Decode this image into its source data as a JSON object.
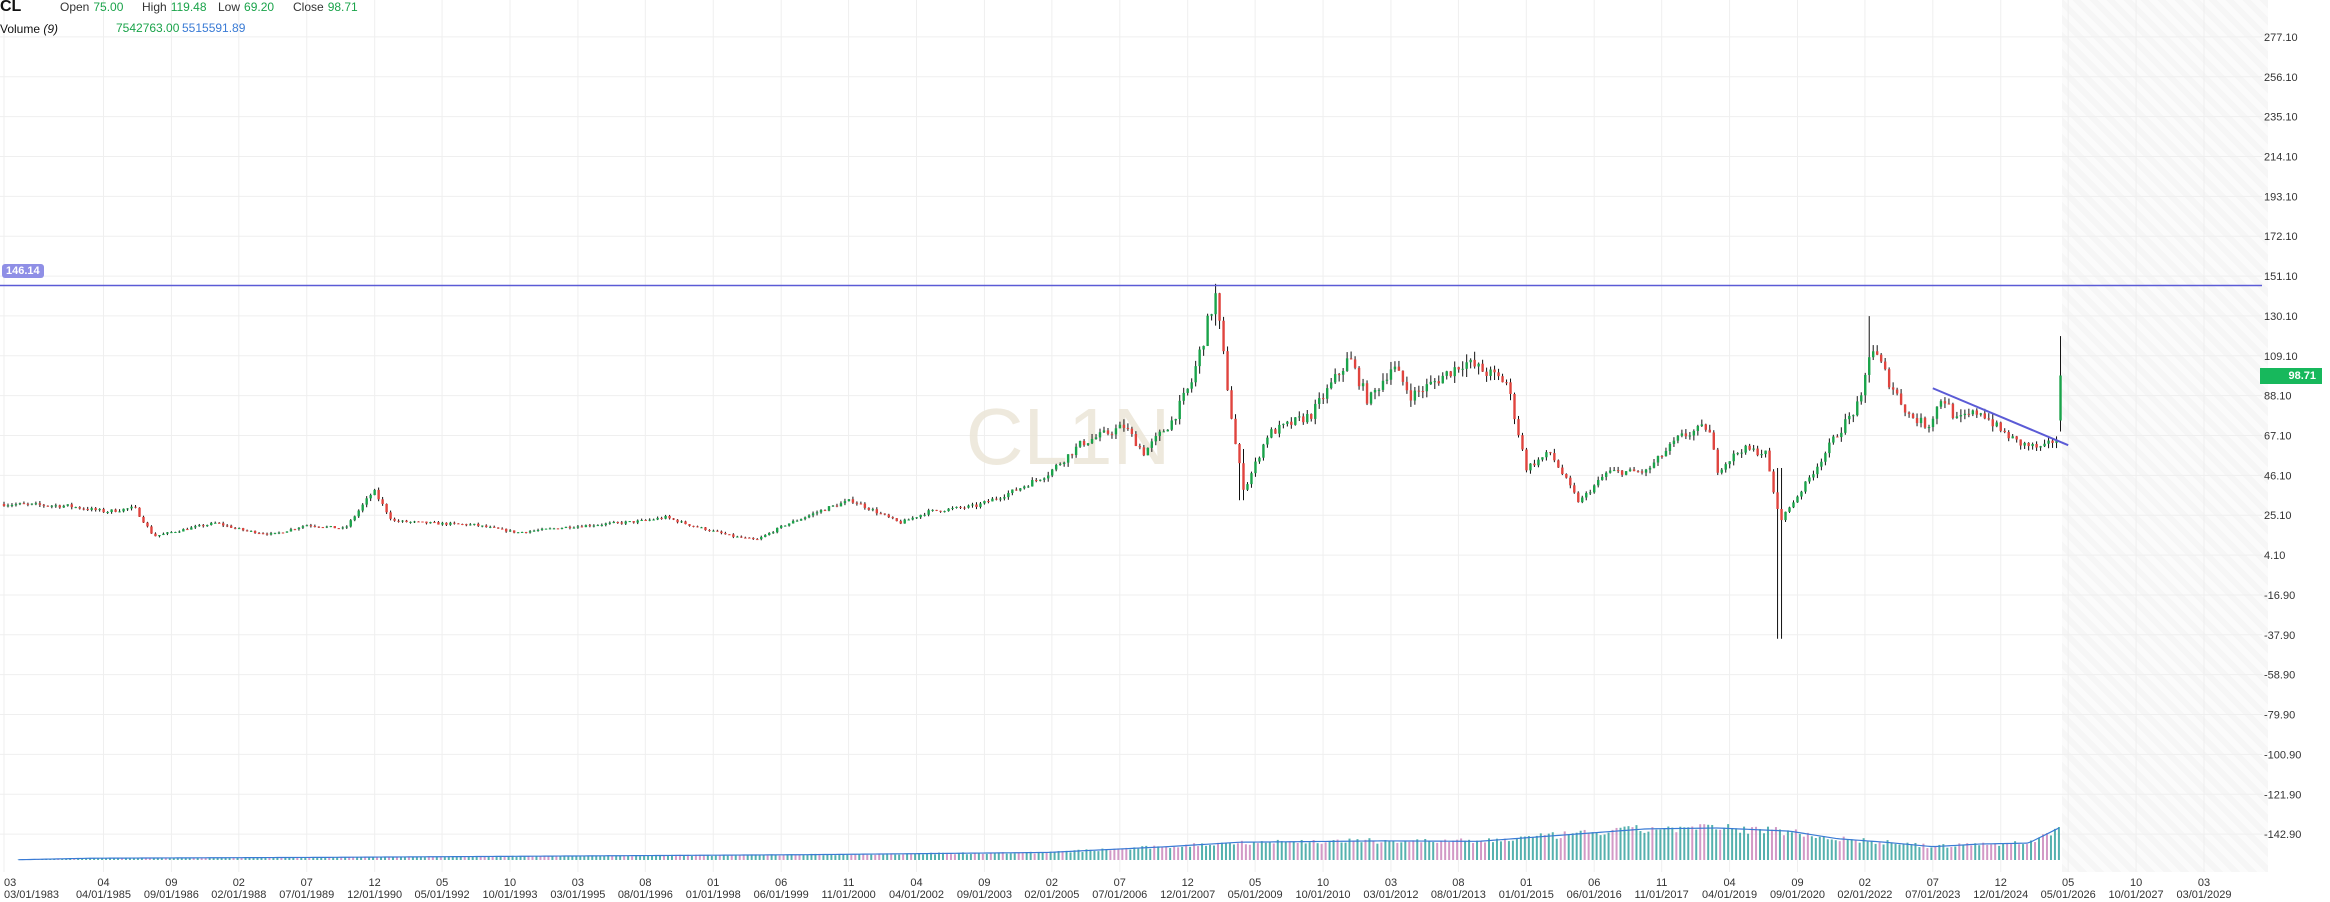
{
  "legend": {
    "symbol": "CL",
    "open_label": "Open",
    "open_value": "75.00",
    "high_label": "High",
    "high_value": "119.48",
    "low_label": "Low",
    "low_value": "69.20",
    "close_label": "Close",
    "close_value": "98.71",
    "volume_label": "Volume",
    "volume_param": "(9)",
    "volume_value": "7542763.00",
    "volume_ma_value": "5515591.89"
  },
  "watermark": "CL1N",
  "horizontal_line": {
    "label": "146.14",
    "value": 146.14,
    "color": "#5b5bd6"
  },
  "last_price_badge": "98.71",
  "colors": {
    "up": "#1aa34a",
    "down": "#e0443e",
    "volume_up": "#2a9d9a",
    "volume_down": "#c77fb8",
    "volume_ma": "#3a7bd5",
    "trendline": "#5b5bd6",
    "grid": "#efefef"
  },
  "chart_data": {
    "type": "candlestick",
    "ylim": [
      -160,
      292
    ],
    "y_ticks": [
      "277.10",
      "256.10",
      "235.10",
      "214.10",
      "193.10",
      "172.10",
      "151.10",
      "130.10",
      "109.10",
      "88.10",
      "67.10",
      "46.10",
      "25.10",
      "4.10",
      "-16.90",
      "-37.90",
      "-58.90",
      "-79.90",
      "-100.90",
      "-121.90",
      "-142.90"
    ],
    "x_ticks": [
      {
        "top": "03",
        "bottom": "03/01/1983",
        "year": 1983.17
      },
      {
        "top": "04",
        "bottom": "04/01/1985",
        "year": 1985.25
      },
      {
        "top": "09",
        "bottom": "09/01/1986",
        "year": 1986.67
      },
      {
        "top": "02",
        "bottom": "02/01/1988",
        "year": 1988.08
      },
      {
        "top": "07",
        "bottom": "07/01/1989",
        "year": 1989.5
      },
      {
        "top": "12",
        "bottom": "12/01/1990",
        "year": 1990.92
      },
      {
        "top": "05",
        "bottom": "05/01/1992",
        "year": 1992.33
      },
      {
        "top": "10",
        "bottom": "10/01/1993",
        "year": 1993.75
      },
      {
        "top": "03",
        "bottom": "03/01/1995",
        "year": 1995.17
      },
      {
        "top": "08",
        "bottom": "08/01/1996",
        "year": 1996.58
      },
      {
        "top": "01",
        "bottom": "01/01/1998",
        "year": 1998.0
      },
      {
        "top": "06",
        "bottom": "06/01/1999",
        "year": 1999.42
      },
      {
        "top": "11",
        "bottom": "11/01/2000",
        "year": 2000.83
      },
      {
        "top": "04",
        "bottom": "04/01/2002",
        "year": 2002.25
      },
      {
        "top": "09",
        "bottom": "09/01/2003",
        "year": 2003.67
      },
      {
        "top": "02",
        "bottom": "02/01/2005",
        "year": 2005.08
      },
      {
        "top": "07",
        "bottom": "07/01/2006",
        "year": 2006.5
      },
      {
        "top": "12",
        "bottom": "12/01/2007",
        "year": 2007.92
      },
      {
        "top": "05",
        "bottom": "05/01/2009",
        "year": 2009.33
      },
      {
        "top": "10",
        "bottom": "10/01/2010",
        "year": 2010.75
      },
      {
        "top": "03",
        "bottom": "03/01/2012",
        "year": 2012.17
      },
      {
        "top": "08",
        "bottom": "08/01/2013",
        "year": 2013.58
      },
      {
        "top": "01",
        "bottom": "01/01/2015",
        "year": 2015.0
      },
      {
        "top": "06",
        "bottom": "06/01/2016",
        "year": 2016.42
      },
      {
        "top": "11",
        "bottom": "11/01/2017",
        "year": 2017.83
      },
      {
        "top": "04",
        "bottom": "04/01/2019",
        "year": 2019.25
      },
      {
        "top": "09",
        "bottom": "09/01/2020",
        "year": 2020.67
      },
      {
        "top": "02",
        "bottom": "02/01/2022",
        "year": 2022.08
      },
      {
        "top": "07",
        "bottom": "07/01/2023",
        "year": 2023.5
      },
      {
        "top": "12",
        "bottom": "12/01/2024",
        "year": 2024.92
      },
      {
        "top": "05",
        "bottom": "05/01/2026",
        "year": 2026.33
      },
      {
        "top": "10",
        "bottom": "10/01/2027",
        "year": 2027.75
      },
      {
        "top": "03",
        "bottom": "03/01/2029",
        "year": 2029.17
      }
    ],
    "price_anchors": [
      [
        1983.17,
        31
      ],
      [
        1984.5,
        30
      ],
      [
        1985.3,
        27
      ],
      [
        1985.9,
        29
      ],
      [
        1986.3,
        14
      ],
      [
        1987.0,
        18
      ],
      [
        1987.6,
        21
      ],
      [
        1988.2,
        17
      ],
      [
        1988.8,
        15
      ],
      [
        1989.5,
        20
      ],
      [
        1990.3,
        18
      ],
      [
        1990.9,
        38
      ],
      [
        1991.3,
        22
      ],
      [
        1992.0,
        21
      ],
      [
        1993.0,
        20
      ],
      [
        1993.9,
        16
      ],
      [
        1995.0,
        19
      ],
      [
        1996.5,
        22
      ],
      [
        1997.0,
        24
      ],
      [
        1997.5,
        20
      ],
      [
        1998.4,
        14
      ],
      [
        1998.9,
        12
      ],
      [
        1999.5,
        20
      ],
      [
        2000.4,
        29
      ],
      [
        2000.9,
        33
      ],
      [
        2001.9,
        21
      ],
      [
        2002.5,
        27
      ],
      [
        2003.5,
        30
      ],
      [
        2004.3,
        38
      ],
      [
        2005.0,
        47
      ],
      [
        2005.7,
        63
      ],
      [
        2006.6,
        72
      ],
      [
        2007.0,
        58
      ],
      [
        2007.6,
        75
      ],
      [
        2008.0,
        95
      ],
      [
        2008.5,
        141
      ],
      [
        2008.9,
        65
      ],
      [
        2009.1,
        38
      ],
      [
        2009.6,
        68
      ],
      [
        2010.5,
        78
      ],
      [
        2011.3,
        108
      ],
      [
        2011.7,
        85
      ],
      [
        2012.2,
        104
      ],
      [
        2012.6,
        88
      ],
      [
        2013.0,
        94
      ],
      [
        2013.7,
        106
      ],
      [
        2014.2,
        100
      ],
      [
        2014.6,
        95
      ],
      [
        2015.0,
        50
      ],
      [
        2015.5,
        58
      ],
      [
        2016.1,
        32
      ],
      [
        2016.7,
        48
      ],
      [
        2017.5,
        48
      ],
      [
        2018.2,
        66
      ],
      [
        2018.8,
        72
      ],
      [
        2019.0,
        49
      ],
      [
        2019.5,
        60
      ],
      [
        2020.0,
        58
      ],
      [
        2020.3,
        22
      ],
      [
        2020.8,
        40
      ],
      [
        2021.5,
        68
      ],
      [
        2022.0,
        85
      ],
      [
        2022.2,
        115
      ],
      [
        2022.6,
        95
      ],
      [
        2023.0,
        78
      ],
      [
        2023.4,
        72
      ],
      [
        2023.7,
        88
      ],
      [
        2024.0,
        75
      ],
      [
        2024.5,
        80
      ],
      [
        2024.9,
        70
      ],
      [
        2025.3,
        63
      ],
      [
        2025.8,
        60
      ],
      [
        2026.1,
        66
      ],
      [
        2026.2,
        98.71
      ]
    ],
    "extreme_bars": [
      {
        "year": 2008.5,
        "high": 147,
        "low": 125
      },
      {
        "year": 2009.05,
        "high": 60,
        "low": 33
      },
      {
        "year": 2020.3,
        "high": 50,
        "low": -40
      },
      {
        "year": 2022.2,
        "high": 130,
        "low": 95
      },
      {
        "year": 2026.2,
        "high": 119.48,
        "low": 69.2
      }
    ],
    "trendline": {
      "from": {
        "year": 2023.5,
        "value": 92
      },
      "to": {
        "year": 2026.33,
        "value": 62
      }
    },
    "volume_range": [
      0,
      9000000
    ],
    "volume_anchors": [
      [
        1983.17,
        0
      ],
      [
        1985.0,
        400000
      ],
      [
        1990.0,
        600000
      ],
      [
        1995.0,
        900000
      ],
      [
        2000.0,
        1200000
      ],
      [
        2005.0,
        1700000
      ],
      [
        2007.5,
        3000000
      ],
      [
        2009.0,
        4000000
      ],
      [
        2012.0,
        4300000
      ],
      [
        2014.0,
        4200000
      ],
      [
        2016.0,
        5800000
      ],
      [
        2017.5,
        7000000
      ],
      [
        2019.0,
        7200000
      ],
      [
        2020.5,
        6500000
      ],
      [
        2021.5,
        4800000
      ],
      [
        2022.5,
        4000000
      ],
      [
        2023.5,
        3000000
      ],
      [
        2024.5,
        3600000
      ],
      [
        2025.5,
        3800000
      ],
      [
        2026.2,
        7542763
      ]
    ]
  }
}
